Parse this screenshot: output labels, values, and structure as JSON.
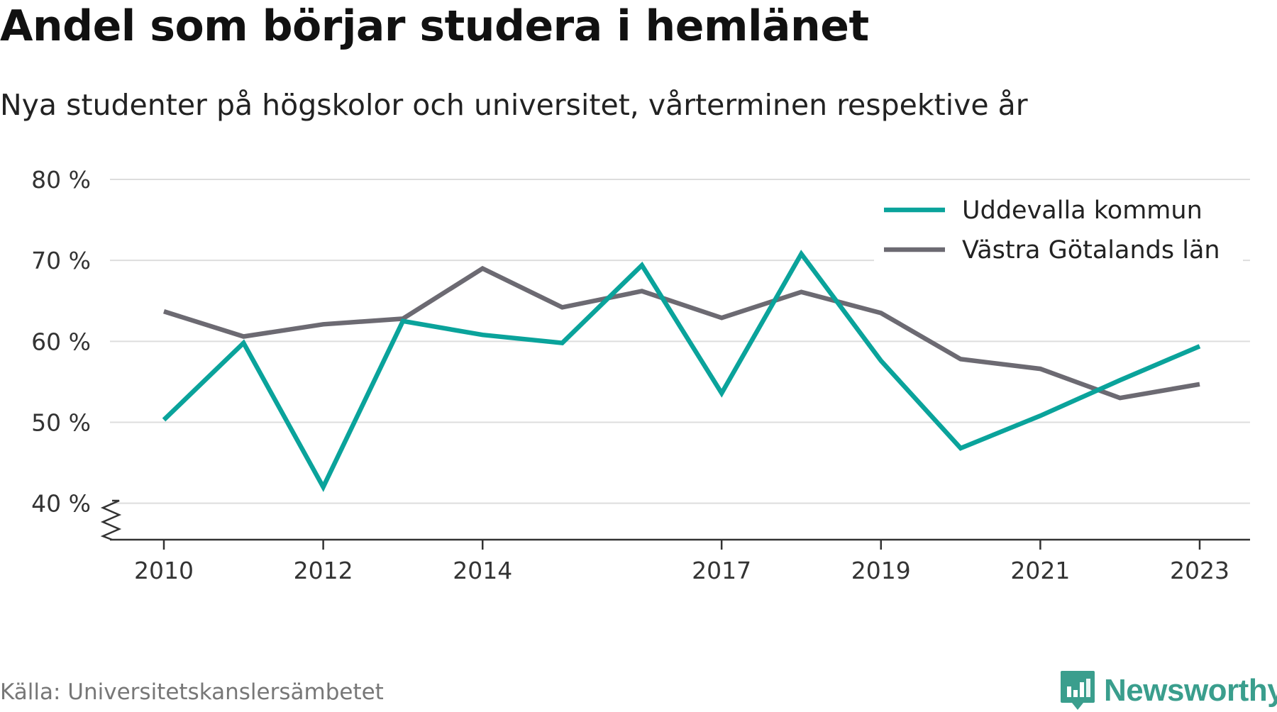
{
  "title": "Andel som börjar studera i hemlänet",
  "subtitle": "Nya studenter på högskolor och universitet, vårterminen respektive år",
  "source": "Källa: Universitetskanslersämbetet",
  "brand": "Newsworthy",
  "colors": {
    "uddevalla": "#0aa39b",
    "vastra_gotaland": "#6c6a72",
    "grid": "#dddddd",
    "axis": "#333333",
    "brand": "#3a9e8d"
  },
  "chart_data": {
    "type": "line",
    "title": "Andel som börjar studera i hemlänet",
    "subtitle": "Nya studenter på högskolor och universitet, vårterminen respektive år",
    "x": [
      2010,
      2011,
      2012,
      2013,
      2014,
      2015,
      2016,
      2017,
      2018,
      2019,
      2020,
      2021,
      2022,
      2023
    ],
    "x_tick_labels": [
      "2010",
      "2012",
      "2014",
      "2017",
      "2019",
      "2021",
      "2023"
    ],
    "y_ticks": [
      40,
      50,
      60,
      70,
      80
    ],
    "y_tick_labels": [
      "40 %",
      "50 %",
      "60 %",
      "70 %",
      "80 %"
    ],
    "ylim": [
      35.5,
      80
    ],
    "y_axis_break": true,
    "grid": true,
    "legend_position": "top-right",
    "series": [
      {
        "name": "Uddevalla kommun",
        "color": "#0aa39b",
        "values": [
          50.3,
          59.8,
          42.0,
          62.5,
          60.8,
          59.8,
          69.4,
          53.6,
          70.8,
          57.6,
          46.8,
          50.8,
          55.2,
          59.4
        ]
      },
      {
        "name": "Västra Götalands län",
        "color": "#6c6a72",
        "values": [
          63.7,
          60.6,
          62.1,
          62.8,
          69.0,
          64.2,
          66.2,
          62.9,
          66.1,
          63.5,
          57.8,
          56.6,
          53.0,
          54.7
        ]
      }
    ]
  }
}
